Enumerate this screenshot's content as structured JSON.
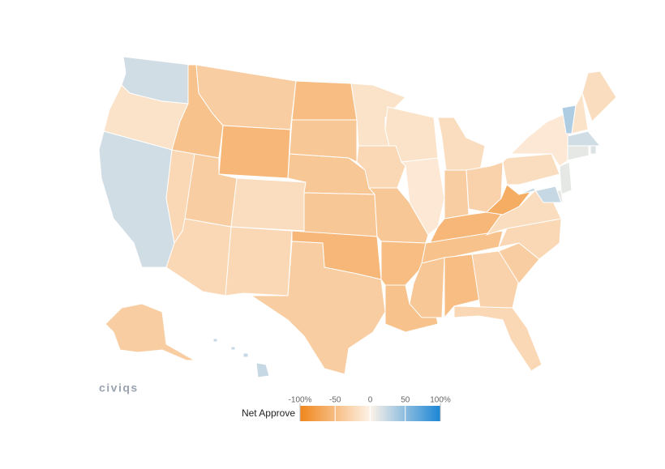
{
  "chart_data": {
    "type": "choropleth",
    "logo": "civiqs",
    "legend_title": "Net Approve",
    "legend_range": [
      -100,
      100
    ],
    "legend_ticks": [
      {
        "value": -100,
        "label": "-100%"
      },
      -50,
      0,
      50,
      {
        "value": 100,
        "label": "100%"
      }
    ],
    "colors": {
      "negative": "#f0861c",
      "zero": "#fdf3e8",
      "positive": "#1b86d6"
    },
    "border_color": "#ffffff",
    "values": [
      20,
      -15,
      20,
      -25,
      -45,
      -35,
      -55,
      -35,
      -20,
      -25,
      -25,
      -50,
      -40,
      -40,
      -40,
      -55,
      -35,
      -15,
      -25,
      -40,
      -50,
      -45,
      -15,
      -10,
      -20,
      -35,
      -30,
      -55,
      -45,
      -40,
      -50,
      -30,
      -25,
      -35,
      -25,
      -20,
      -65,
      -20,
      -10,
      35,
      -15,
      -20,
      20,
      15,
      10,
      10,
      10,
      25,
      -35,
      25
    ]
  }
}
